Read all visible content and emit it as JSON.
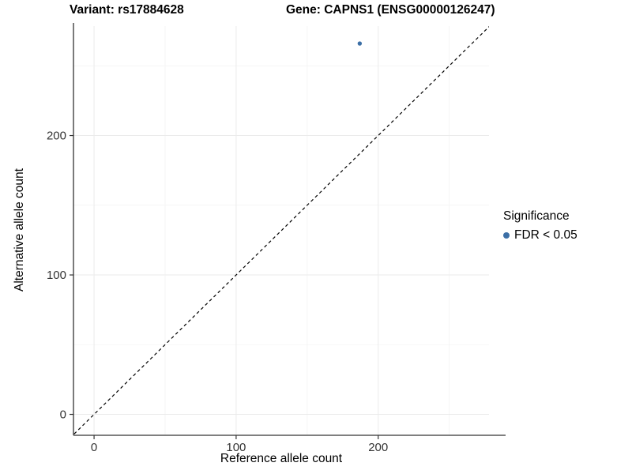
{
  "titles": {
    "variant": "Variant: rs17884628",
    "gene": "Gene: CAPNS1 (ENSG00000126247)"
  },
  "axes": {
    "x_label": "Reference allele count",
    "y_label": "Alternative allele count"
  },
  "legend": {
    "title": "Significance",
    "items": [
      {
        "label": "FDR < 0.05",
        "color": "#3C6FA6"
      }
    ]
  },
  "colors": {
    "background": "#ffffff",
    "axis_line": "#333333",
    "tick_label": "#333333",
    "grid_major": "#ebebeb",
    "grid_minor": "#f4f4f4",
    "identity_line": "#000000",
    "point": "#3C6FA6"
  },
  "chart_data": {
    "type": "scatter",
    "title": "Variant: rs17884628    Gene: CAPNS1 (ENSG00000126247)",
    "xlabel": "Reference allele count",
    "ylabel": "Alternative allele count",
    "xlim": [
      -14.5,
      278
    ],
    "ylim": [
      -15,
      278.5
    ],
    "x_ticks": [
      0,
      100,
      200
    ],
    "y_ticks": [
      0,
      100,
      200
    ],
    "x_minor_breaks": [
      50,
      150,
      250
    ],
    "y_minor_breaks": [
      50,
      150,
      250
    ],
    "grid": true,
    "legend_position": "right",
    "legend_title": "Significance",
    "reference_line": {
      "kind": "identity",
      "slope": 1,
      "intercept": 0,
      "style": "dashed",
      "color": "#000000"
    },
    "series": [
      {
        "name": "FDR < 0.05",
        "color": "#3C6FA6",
        "points": [
          {
            "x": 187,
            "y": 266
          }
        ]
      }
    ]
  }
}
